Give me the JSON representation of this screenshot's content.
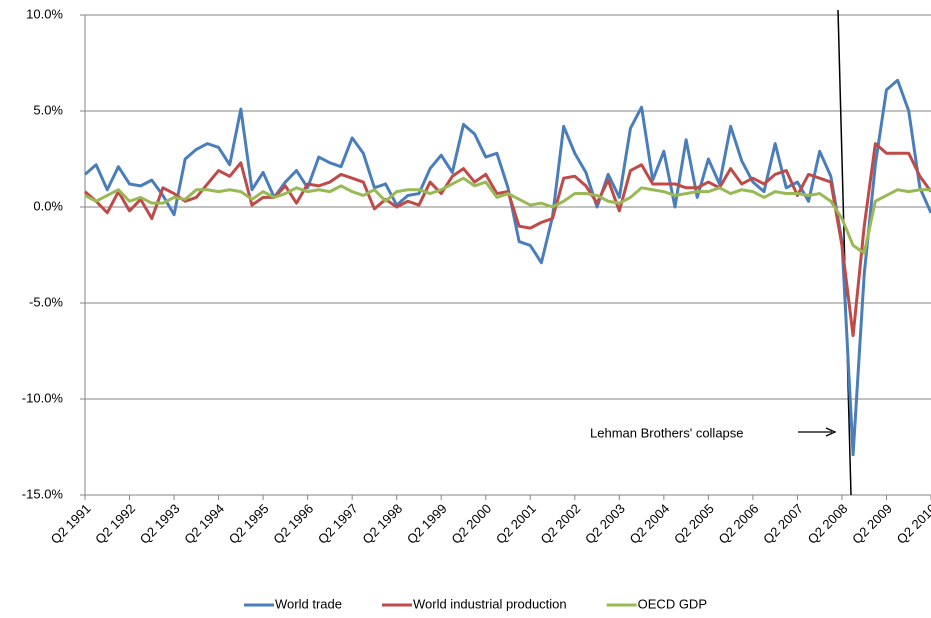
{
  "chart_data": {
    "type": "line",
    "categories": [
      "Q2 1991",
      null,
      null,
      null,
      "Q2 1992",
      null,
      null,
      null,
      "Q2 1993",
      null,
      null,
      null,
      "Q2 1994",
      null,
      null,
      null,
      "Q2 1995",
      null,
      null,
      null,
      "Q2 1996",
      null,
      null,
      null,
      "Q2 1997",
      null,
      null,
      null,
      "Q2 1998",
      null,
      null,
      null,
      "Q2 1999",
      null,
      null,
      null,
      "Q2 2000",
      null,
      null,
      null,
      "Q2 2001",
      null,
      null,
      null,
      "Q2 2002",
      null,
      null,
      null,
      "Q2 2003",
      null,
      null,
      null,
      "Q2 2004",
      null,
      null,
      null,
      "Q2 2005",
      null,
      null,
      null,
      "Q2 2006",
      null,
      null,
      null,
      "Q2 2007",
      null,
      null,
      null,
      "Q2 2008",
      null,
      null,
      null,
      "Q2 2009",
      null,
      null,
      null,
      "Q2 2010"
    ],
    "series": [
      {
        "name": "World trade",
        "color": "#4a7ebb",
        "values": [
          1.7,
          2.2,
          0.9,
          2.1,
          1.2,
          1.1,
          1.4,
          0.6,
          -0.4,
          2.5,
          3.0,
          3.3,
          3.1,
          2.2,
          5.1,
          0.9,
          1.8,
          0.5,
          1.3,
          1.9,
          1.0,
          2.6,
          2.3,
          2.1,
          3.6,
          2.8,
          1.0,
          1.2,
          0.1,
          0.6,
          0.7,
          2.0,
          2.7,
          1.8,
          4.3,
          3.8,
          2.6,
          2.8,
          1.0,
          -1.8,
          -2.0,
          -2.9,
          -0.5,
          4.2,
          2.8,
          1.8,
          0.0,
          1.7,
          0.5,
          4.1,
          5.2,
          1.4,
          2.9,
          0.0,
          3.5,
          0.5,
          2.5,
          1.2,
          4.2,
          2.4,
          1.3,
          0.8,
          3.3,
          1.0,
          1.3,
          0.3,
          2.9,
          1.6,
          -1.8,
          -12.9,
          -3.5,
          2.2,
          6.1,
          6.6,
          5.0,
          1.0,
          -0.3
        ]
      },
      {
        "name": "World industrial production",
        "color": "#be4b48",
        "values": [
          0.8,
          0.3,
          -0.3,
          0.8,
          -0.2,
          0.4,
          -0.6,
          1.0,
          0.7,
          0.3,
          0.5,
          1.2,
          1.9,
          1.6,
          2.3,
          0.1,
          0.5,
          0.5,
          1.1,
          0.2,
          1.2,
          1.1,
          1.3,
          1.7,
          1.5,
          1.3,
          -0.1,
          0.4,
          0.0,
          0.3,
          0.1,
          1.3,
          0.7,
          1.6,
          2.0,
          1.3,
          1.7,
          0.7,
          0.8,
          -1.0,
          -1.1,
          -0.8,
          -0.6,
          1.5,
          1.6,
          1.1,
          0.2,
          1.4,
          -0.2,
          1.9,
          2.2,
          1.2,
          1.2,
          1.2,
          1.0,
          1.0,
          1.3,
          1.0,
          2.0,
          1.2,
          1.5,
          1.2,
          1.7,
          1.9,
          0.6,
          1.7,
          1.5,
          1.3,
          -2.0,
          -6.7,
          -1.0,
          3.3,
          2.8,
          2.8,
          2.8,
          1.6,
          0.8
        ]
      },
      {
        "name": "OECD GDP",
        "color": "#98b954",
        "values": [
          0.6,
          0.3,
          0.6,
          0.9,
          0.3,
          0.5,
          0.2,
          0.2,
          0.5,
          0.4,
          0.9,
          0.9,
          0.8,
          0.9,
          0.8,
          0.4,
          0.8,
          0.5,
          0.7,
          1.0,
          0.8,
          0.9,
          0.8,
          1.1,
          0.8,
          0.6,
          0.9,
          0.3,
          0.8,
          0.9,
          0.9,
          0.7,
          0.9,
          1.2,
          1.5,
          1.1,
          1.3,
          0.5,
          0.7,
          0.4,
          0.1,
          0.2,
          0.0,
          0.3,
          0.7,
          0.7,
          0.6,
          0.3,
          0.2,
          0.5,
          1.0,
          0.9,
          0.8,
          0.6,
          0.7,
          0.8,
          0.8,
          1.0,
          0.7,
          0.9,
          0.8,
          0.5,
          0.8,
          0.7,
          0.7,
          0.6,
          0.7,
          0.3,
          -0.6,
          -2.0,
          -2.4,
          0.3,
          0.6,
          0.9,
          0.8,
          0.9,
          0.9
        ]
      }
    ],
    "ylim": [
      -15,
      10
    ],
    "yticks": [
      {
        "value": -15,
        "label": "-15.0%"
      },
      {
        "value": -10,
        "label": "-10.0%"
      },
      {
        "value": -5,
        "label": "-5.0%"
      },
      {
        "value": 0,
        "label": "0.0%"
      },
      {
        "value": 5,
        "label": "5.0%"
      },
      {
        "value": 10,
        "label": "10.0%"
      }
    ],
    "grid": true,
    "legend": "bottom",
    "annotation": "Lehman Brothers' collapse"
  }
}
